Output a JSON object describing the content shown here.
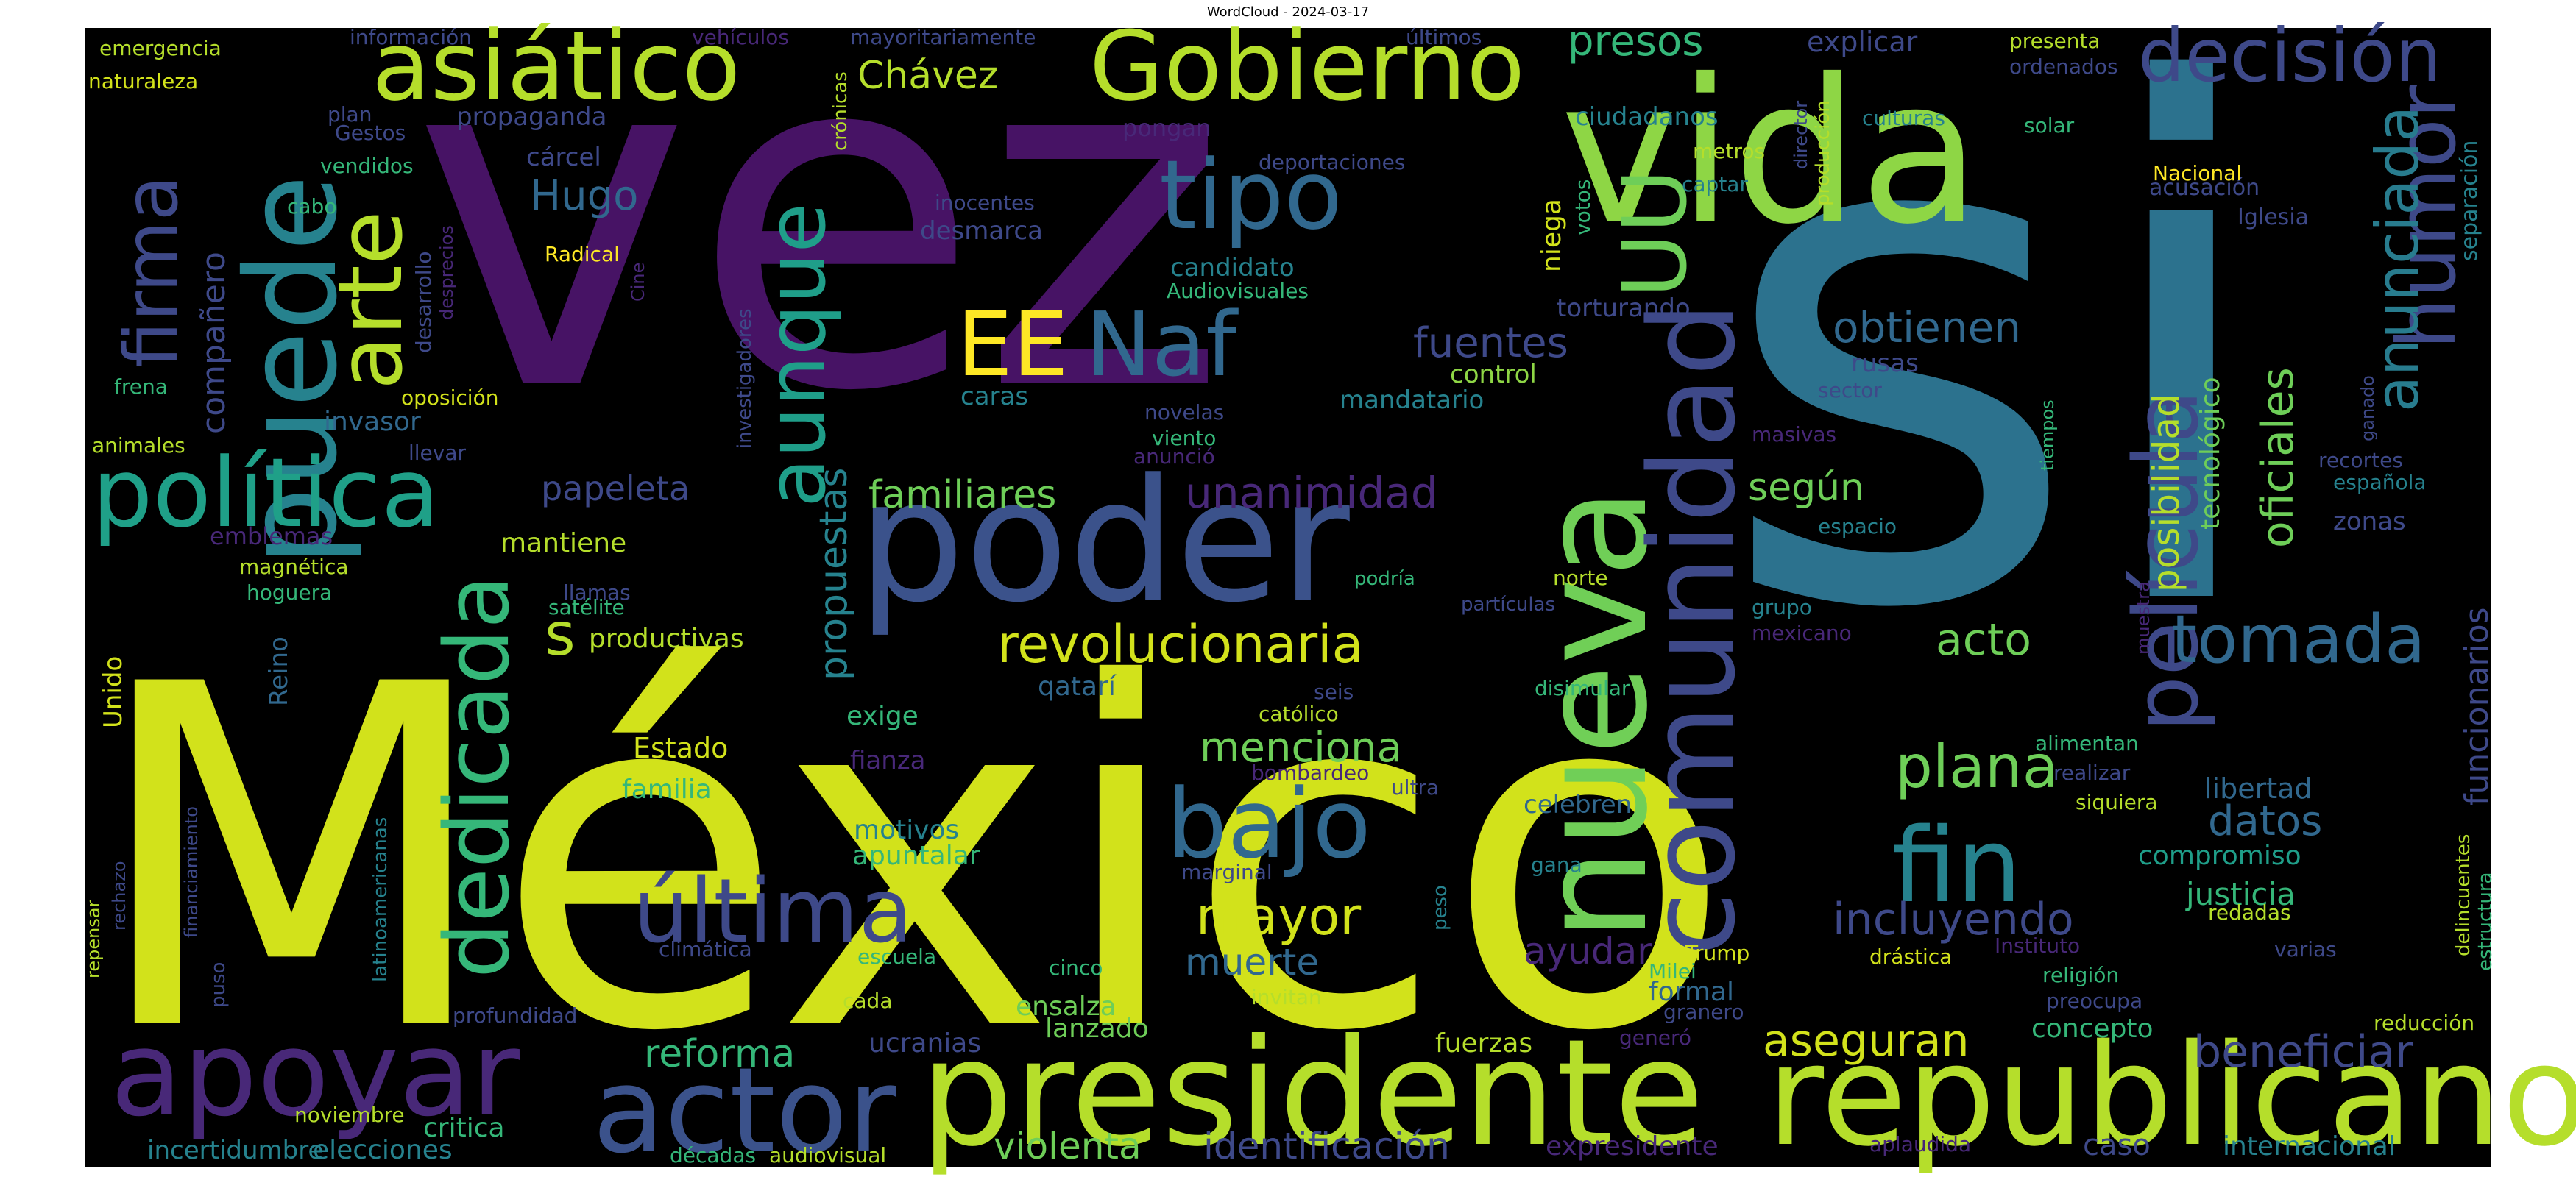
{
  "chart_data": {
    "type": "wordcloud",
    "title": "WordCloud - 2024-03-17",
    "background": "#000000",
    "colormap": "viridis",
    "words": [
      {
        "text": "México",
        "weight": 1.0,
        "color": "#d2e21b"
      },
      {
        "text": "vez",
        "weight": 0.94,
        "color": "#471365"
      },
      {
        "text": "si",
        "weight": 0.9,
        "color": "#2c728e"
      },
      {
        "text": "vida",
        "weight": 0.48,
        "color": "#8ed645"
      },
      {
        "text": "poder",
        "weight": 0.42,
        "color": "#3b528b"
      },
      {
        "text": "nueva",
        "weight": 0.4,
        "color": "#70cf57"
      },
      {
        "text": "presidente",
        "weight": 0.38,
        "color": "#b5de2b"
      },
      {
        "text": "puede",
        "weight": 0.28,
        "color": "#26828e"
      },
      {
        "text": "republicano",
        "weight": 0.3,
        "color": "#b5de2b"
      },
      {
        "text": "comunidad",
        "weight": 0.27,
        "color": "#3e4989"
      },
      {
        "text": "política",
        "weight": 0.22,
        "color": "#1fa088"
      },
      {
        "text": "apoyar",
        "weight": 0.22,
        "color": "#482878"
      },
      {
        "text": "Gobierno",
        "weight": 0.21,
        "color": "#b5de2b"
      },
      {
        "text": "asiático",
        "weight": 0.2,
        "color": "#b5de2b"
      },
      {
        "text": "decisión",
        "weight": 0.17,
        "color": "#3e4989"
      },
      {
        "text": "actor",
        "weight": 0.21,
        "color": "#3b528b"
      },
      {
        "text": "película",
        "weight": 0.2,
        "color": "#3e4989"
      },
      {
        "text": "dedicada",
        "weight": 0.2,
        "color": "#35b779"
      },
      {
        "text": "tipo",
        "weight": 0.18,
        "color": "#31688e"
      },
      {
        "text": "bajo",
        "weight": 0.2,
        "color": "#31688e"
      },
      {
        "text": "fin",
        "weight": 0.2,
        "color": "#26828e"
      },
      {
        "text": "última",
        "weight": 0.18,
        "color": "#3e4989"
      },
      {
        "text": "humor",
        "weight": 0.17,
        "color": "#3e4989"
      },
      {
        "text": "arte",
        "weight": 0.17,
        "color": "#b5de2b"
      },
      {
        "text": "aunque",
        "weight": 0.17,
        "color": "#1f9e89"
      },
      {
        "text": "firma",
        "weight": 0.14,
        "color": "#3e4989"
      },
      {
        "text": "Naf",
        "weight": 0.15,
        "color": "#31688e"
      },
      {
        "text": "EE",
        "weight": 0.15,
        "color": "#fde725"
      },
      {
        "text": "UU",
        "weight": 0.14,
        "color": "#6ece58"
      },
      {
        "text": "tomada",
        "weight": 0.13,
        "color": "#31688e"
      },
      {
        "text": "revolucionaria",
        "weight": 0.1,
        "color": "#d2e21b"
      },
      {
        "text": "anunciada",
        "weight": 0.11,
        "color": "#287c8e"
      },
      {
        "text": "oficiales",
        "weight": 0.09,
        "color": "#6ece58"
      },
      {
        "text": "posibilidad",
        "weight": 0.08,
        "color": "#b5de2b"
      },
      {
        "text": "funcionarios",
        "weight": 0.06,
        "color": "#3e4989"
      },
      {
        "text": "plana",
        "weight": 0.1,
        "color": "#6ece58"
      },
      {
        "text": "mayor",
        "weight": 0.1,
        "color": "#d2e21b"
      },
      {
        "text": "incluyendo",
        "weight": 0.08,
        "color": "#3e4989"
      },
      {
        "text": "aseguran",
        "weight": 0.08,
        "color": "#d2e21b"
      },
      {
        "text": "beneficiar",
        "weight": 0.08,
        "color": "#3e4989"
      },
      {
        "text": "reforma",
        "weight": 0.07,
        "color": "#35b779"
      },
      {
        "text": "identificación",
        "weight": 0.07,
        "color": "#3e4989"
      },
      {
        "text": "violenta",
        "weight": 0.07,
        "color": "#6ece58"
      },
      {
        "text": "familiares",
        "weight": 0.07,
        "color": "#6ece58"
      },
      {
        "text": "unanimidad",
        "weight": 0.08,
        "color": "#482878"
      },
      {
        "text": "obtienen",
        "weight": 0.08,
        "color": "#31688e"
      },
      {
        "text": "Chávez",
        "weight": 0.07,
        "color": "#b5de2b"
      },
      {
        "text": "presos",
        "weight": 0.07,
        "color": "#35b779"
      },
      {
        "text": "Hugo",
        "weight": 0.07,
        "color": "#31688e"
      },
      {
        "text": "acto",
        "weight": 0.08,
        "color": "#6ece58"
      },
      {
        "text": "según",
        "weight": 0.07,
        "color": "#6ece58"
      },
      {
        "text": "muerte",
        "weight": 0.07,
        "color": "#31688e"
      },
      {
        "text": "ayudar",
        "weight": 0.07,
        "color": "#482878"
      },
      {
        "text": "menciona",
        "weight": 0.07,
        "color": "#6ece58"
      },
      {
        "text": "datos",
        "weight": 0.07,
        "color": "#31688e"
      },
      {
        "text": "propuestas",
        "weight": 0.07,
        "color": "#26828e"
      },
      {
        "text": "papeleta",
        "weight": 0.07,
        "color": "#3e4989"
      },
      {
        "text": "fuentes",
        "weight": 0.07,
        "color": "#3e4989"
      },
      {
        "text": "justicia",
        "weight": 0.06,
        "color": "#35b779"
      },
      {
        "text": "libertad",
        "weight": 0.06,
        "color": "#31688e"
      },
      {
        "text": "compromiso",
        "weight": 0.06,
        "color": "#1f9e89"
      },
      {
        "text": "compañero",
        "weight": 0.06,
        "color": "#3e4989"
      },
      {
        "text": "tecnológico",
        "weight": 0.05,
        "color": "#6ece58"
      },
      {
        "text": "mantiene",
        "weight": 0.05,
        "color": "#b5de2b"
      },
      {
        "text": "productivas",
        "weight": 0.05,
        "color": "#b5de2b"
      },
      {
        "text": "s",
        "weight": 0.08,
        "color": "#b5de2b"
      },
      {
        "text": "Estado",
        "weight": 0.05,
        "color": "#d2e21b"
      },
      {
        "text": "familia",
        "weight": 0.05,
        "color": "#35b779"
      },
      {
        "text": "motivos",
        "weight": 0.05,
        "color": "#26828e"
      },
      {
        "text": "apuntalar",
        "weight": 0.05,
        "color": "#35b779"
      },
      {
        "text": "concepto",
        "weight": 0.05,
        "color": "#35b779"
      },
      {
        "text": "formal",
        "weight": 0.05,
        "color": "#31688e"
      },
      {
        "text": "fuerzas",
        "weight": 0.05,
        "color": "#b5de2b"
      },
      {
        "text": "caso",
        "weight": 0.05,
        "color": "#3e4989"
      },
      {
        "text": "internacional",
        "weight": 0.05,
        "color": "#26828e"
      },
      {
        "text": "expresidente",
        "weight": 0.05,
        "color": "#482878"
      },
      {
        "text": "elecciones",
        "weight": 0.05,
        "color": "#26828e"
      },
      {
        "text": "incertidumbre",
        "weight": 0.04,
        "color": "#26828e"
      },
      {
        "text": "critica",
        "weight": 0.05,
        "color": "#35b779"
      },
      {
        "text": "ensalza",
        "weight": 0.05,
        "color": "#6ece58"
      },
      {
        "text": "lanzado",
        "weight": 0.05,
        "color": "#6ece58"
      },
      {
        "text": "ucranias",
        "weight": 0.05,
        "color": "#3e4989"
      },
      {
        "text": "mandatario",
        "weight": 0.05,
        "color": "#26828e"
      },
      {
        "text": "control",
        "weight": 0.05,
        "color": "#8ed645"
      },
      {
        "text": "candidato",
        "weight": 0.05,
        "color": "#26828e"
      },
      {
        "text": "desmarca",
        "weight": 0.05,
        "color": "#3e4989"
      },
      {
        "text": "cárcel",
        "weight": 0.05,
        "color": "#3e4989"
      },
      {
        "text": "propaganda",
        "weight": 0.05,
        "color": "#3e4989"
      },
      {
        "text": "ciudadanos",
        "weight": 0.05,
        "color": "#26828e"
      },
      {
        "text": "explicar",
        "weight": 0.05,
        "color": "#3e4989"
      },
      {
        "text": "torturando",
        "weight": 0.05,
        "color": "#3e4989"
      },
      {
        "text": "rusas",
        "weight": 0.05,
        "color": "#3e4989"
      },
      {
        "text": "caras",
        "weight": 0.05,
        "color": "#26828e"
      },
      {
        "text": "invasor",
        "weight": 0.05,
        "color": "#31688e"
      },
      {
        "text": "emblemas",
        "weight": 0.04,
        "color": "#482878"
      },
      {
        "text": "niega",
        "weight": 0.05,
        "color": "#d2e21b"
      },
      {
        "text": "qatarí",
        "weight": 0.05,
        "color": "#31688e"
      },
      {
        "text": "exige",
        "weight": 0.05,
        "color": "#35b779"
      },
      {
        "text": "fianza",
        "weight": 0.05,
        "color": "#482878"
      },
      {
        "text": "celebren",
        "weight": 0.05,
        "color": "#31688e"
      },
      {
        "text": "separación",
        "weight": 0.04,
        "color": "#26828e"
      },
      {
        "text": "zonas",
        "weight": 0.04,
        "color": "#3e4989"
      },
      {
        "text": "acusación",
        "weight": 0.04,
        "color": "#3e4989"
      },
      {
        "text": "Iglesia",
        "weight": 0.04,
        "color": "#3e4989"
      },
      {
        "text": "Nacional",
        "weight": 0.04,
        "color": "#fde725"
      },
      {
        "text": "Unido",
        "weight": 0.04,
        "color": "#d2e21b"
      },
      {
        "text": "Reino",
        "weight": 0.04,
        "color": "#31688e"
      },
      {
        "text": "oposición",
        "weight": 0.04,
        "color": "#d2e21b"
      },
      {
        "text": "desarrollo",
        "weight": 0.04,
        "color": "#3e4989"
      },
      {
        "text": "desprecios",
        "weight": 0.03,
        "color": "#482878"
      },
      {
        "text": "Radical",
        "weight": 0.04,
        "color": "#fde725"
      },
      {
        "text": "vendidos",
        "weight": 0.04,
        "color": "#35b779"
      },
      {
        "text": "Gestos",
        "weight": 0.04,
        "color": "#3e4989"
      },
      {
        "text": "plan",
        "weight": 0.04,
        "color": "#3e4989"
      },
      {
        "text": "cabo",
        "weight": 0.04,
        "color": "#35b779"
      },
      {
        "text": "frena",
        "weight": 0.04,
        "color": "#35b779"
      },
      {
        "text": "animales",
        "weight": 0.04,
        "color": "#b5de2b"
      },
      {
        "text": "llevar",
        "weight": 0.04,
        "color": "#3e4989"
      },
      {
        "text": "magnética",
        "weight": 0.04,
        "color": "#b5de2b"
      },
      {
        "text": "hoguera",
        "weight": 0.04,
        "color": "#35b779"
      },
      {
        "text": "llamas",
        "weight": 0.04,
        "color": "#3e4989"
      },
      {
        "text": "satélite",
        "weight": 0.04,
        "color": "#35b779"
      },
      {
        "text": "podría",
        "weight": 0.04,
        "color": "#35b779"
      },
      {
        "text": "partículas",
        "weight": 0.04,
        "color": "#3e4989"
      },
      {
        "text": "norte",
        "weight": 0.04,
        "color": "#b5de2b"
      },
      {
        "text": "disimular",
        "weight": 0.04,
        "color": "#35b779"
      },
      {
        "text": "grupo",
        "weight": 0.04,
        "color": "#26828e"
      },
      {
        "text": "mexicano",
        "weight": 0.04,
        "color": "#482878"
      },
      {
        "text": "espacio",
        "weight": 0.04,
        "color": "#26828e"
      },
      {
        "text": "católico",
        "weight": 0.04,
        "color": "#b5de2b"
      },
      {
        "text": "seis",
        "weight": 0.04,
        "color": "#3e4989"
      },
      {
        "text": "emergencia",
        "weight": 0.04,
        "color": "#b5de2b"
      },
      {
        "text": "naturaleza",
        "weight": 0.04,
        "color": "#d2e21b"
      },
      {
        "text": "información",
        "weight": 0.04,
        "color": "#3e4989"
      },
      {
        "text": "vehículos",
        "weight": 0.04,
        "color": "#482878"
      },
      {
        "text": "mayoritariamente",
        "weight": 0.04,
        "color": "#3e4989"
      },
      {
        "text": "crónicas",
        "weight": 0.03,
        "color": "#b5de2b"
      },
      {
        "text": "últimos",
        "weight": 0.04,
        "color": "#3e4989"
      },
      {
        "text": "presenta",
        "weight": 0.04,
        "color": "#b5de2b"
      },
      {
        "text": "ordenados",
        "weight": 0.04,
        "color": "#3e4989"
      },
      {
        "text": "culturas",
        "weight": 0.04,
        "color": "#26828e"
      },
      {
        "text": "solar",
        "weight": 0.04,
        "color": "#35b779"
      },
      {
        "text": "producción",
        "weight": 0.03,
        "color": "#b5de2b"
      },
      {
        "text": "director",
        "weight": 0.03,
        "color": "#3e4989"
      },
      {
        "text": "metros",
        "weight": 0.04,
        "color": "#b5de2b"
      },
      {
        "text": "captar",
        "weight": 0.04,
        "color": "#26828e"
      },
      {
        "text": "votos",
        "weight": 0.04,
        "color": "#35b779"
      },
      {
        "text": "pongan",
        "weight": 0.04,
        "color": "#482878"
      },
      {
        "text": "deportaciones",
        "weight": 0.04,
        "color": "#3e4989"
      },
      {
        "text": "inocentes",
        "weight": 0.04,
        "color": "#3e4989"
      },
      {
        "text": "Audiovisuales",
        "weight": 0.04,
        "color": "#35b779"
      },
      {
        "text": "novelas",
        "weight": 0.04,
        "color": "#3e4989"
      },
      {
        "text": "viento",
        "weight": 0.04,
        "color": "#35b779"
      },
      {
        "text": "anunció",
        "weight": 0.04,
        "color": "#482878"
      },
      {
        "text": "masivas",
        "weight": 0.04,
        "color": "#482878"
      },
      {
        "text": "sector",
        "weight": 0.04,
        "color": "#3e4989"
      },
      {
        "text": "tiempos",
        "weight": 0.03,
        "color": "#35b779"
      },
      {
        "text": "ganado",
        "weight": 0.03,
        "color": "#3e4989"
      },
      {
        "text": "recortes",
        "weight": 0.04,
        "color": "#3e4989"
      },
      {
        "text": "española",
        "weight": 0.04,
        "color": "#26828e"
      },
      {
        "text": "investigadores",
        "weight": 0.03,
        "color": "#3e4989"
      },
      {
        "text": "Cine",
        "weight": 0.03,
        "color": "#482878"
      },
      {
        "text": "muestra",
        "weight": 0.03,
        "color": "#482878"
      },
      {
        "text": "alimentan",
        "weight": 0.04,
        "color": "#35b779"
      },
      {
        "text": "realizar",
        "weight": 0.04,
        "color": "#3e4989"
      },
      {
        "text": "siquiera",
        "weight": 0.04,
        "color": "#b5de2b"
      },
      {
        "text": "redadas",
        "weight": 0.04,
        "color": "#b5de2b"
      },
      {
        "text": "varias",
        "weight": 0.04,
        "color": "#3e4989"
      },
      {
        "text": "delincuentes",
        "weight": 0.03,
        "color": "#b5de2b"
      },
      {
        "text": "estructura",
        "weight": 0.03,
        "color": "#35b779"
      },
      {
        "text": "reducción",
        "weight": 0.04,
        "color": "#b5de2b"
      },
      {
        "text": "religión",
        "weight": 0.04,
        "color": "#35b779"
      },
      {
        "text": "preocupa",
        "weight": 0.04,
        "color": "#3e4989"
      },
      {
        "text": "Instituto",
        "weight": 0.04,
        "color": "#482878"
      },
      {
        "text": "drástica",
        "weight": 0.04,
        "color": "#d2e21b"
      },
      {
        "text": "Trump",
        "weight": 0.04,
        "color": "#d2e21b"
      },
      {
        "text": "Milei",
        "weight": 0.04,
        "color": "#35b779"
      },
      {
        "text": "granero",
        "weight": 0.04,
        "color": "#3e4989"
      },
      {
        "text": "generó",
        "weight": 0.04,
        "color": "#482878"
      },
      {
        "text": "aplaudida",
        "weight": 0.04,
        "color": "#482878"
      },
      {
        "text": "gana",
        "weight": 0.04,
        "color": "#26828e"
      },
      {
        "text": "ultra",
        "weight": 0.04,
        "color": "#3e4989"
      },
      {
        "text": "peso",
        "weight": 0.03,
        "color": "#26828e"
      },
      {
        "text": "bombardeo",
        "weight": 0.04,
        "color": "#482878"
      },
      {
        "text": "marginal",
        "weight": 0.04,
        "color": "#3e4989"
      },
      {
        "text": "escuela",
        "weight": 0.04,
        "color": "#35b779"
      },
      {
        "text": "climática",
        "weight": 0.04,
        "color": "#3e4989"
      },
      {
        "text": "cinco",
        "weight": 0.04,
        "color": "#35b779"
      },
      {
        "text": "cada",
        "weight": 0.04,
        "color": "#b5de2b"
      },
      {
        "text": "invitan",
        "weight": 0.04,
        "color": "#b5de2b"
      },
      {
        "text": "décadas",
        "weight": 0.04,
        "color": "#35b779"
      },
      {
        "text": "audiovisual",
        "weight": 0.04,
        "color": "#b5de2b"
      },
      {
        "text": "profundidad",
        "weight": 0.04,
        "color": "#3e4989"
      },
      {
        "text": "noviembre",
        "weight": 0.04,
        "color": "#b5de2b"
      },
      {
        "text": "latinoamericanas",
        "weight": 0.03,
        "color": "#26828e"
      },
      {
        "text": "financiamiento",
        "weight": 0.03,
        "color": "#3e4989"
      },
      {
        "text": "rechazo",
        "weight": 0.03,
        "color": "#3e4989"
      },
      {
        "text": "repensar",
        "weight": 0.03,
        "color": "#b5de2b"
      },
      {
        "text": "puso",
        "weight": 0.03,
        "color": "#3e4989"
      }
    ]
  }
}
